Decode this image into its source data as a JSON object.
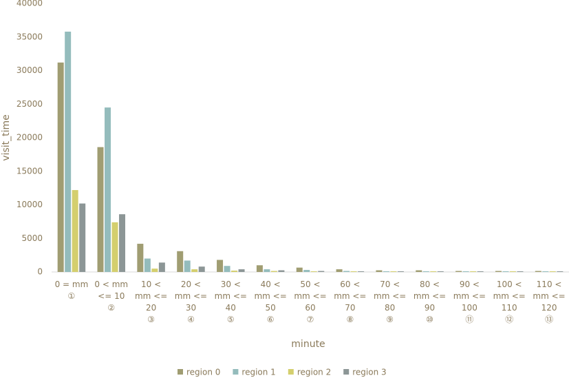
{
  "chart_data": {
    "type": "bar",
    "x_label": "minute",
    "y_label": "visit_time",
    "categories": [
      "0 = mm ①",
      "0 < mm <= 10 ②",
      "10 < mm <= 20 ③",
      "20 < mm <= 30 ④",
      "30 < mm <= 40 ⑤",
      "40 < mm <= 50 ⑥",
      "50 < mm <= 60 ⑦",
      "60 < mm <= 70 ⑧",
      "70 < mm <= 80 ⑨",
      "80 < mm <= 90 ⑩",
      "90 < mm <= 100 ⑪",
      "100 < mm <= 110 ⑫",
      "110 < mm <= 120 ⑬"
    ],
    "series": [
      {
        "name": "region 0",
        "color": "#a09d72",
        "values": [
          31200,
          18600,
          4200,
          3100,
          1800,
          1000,
          650,
          400,
          250,
          250,
          150,
          150,
          150
        ]
      },
      {
        "name": "region 1",
        "color": "#94bcbc",
        "values": [
          35800,
          24500,
          2000,
          1700,
          900,
          400,
          300,
          150,
          100,
          100,
          100,
          100,
          100
        ]
      },
      {
        "name": "region 2",
        "color": "#d4cf6e",
        "values": [
          12200,
          7400,
          500,
          400,
          200,
          150,
          100,
          100,
          100,
          100,
          100,
          100,
          100
        ]
      },
      {
        "name": "region 3",
        "color": "#8c9696",
        "values": [
          10200,
          8600,
          1400,
          800,
          400,
          250,
          150,
          100,
          100,
          100,
          100,
          100,
          100
        ]
      }
    ],
    "ylim": [
      0,
      40000
    ],
    "yticks": [
      0,
      5000,
      10000,
      15000,
      20000,
      25000,
      30000,
      35000,
      40000
    ],
    "grid": false,
    "legend": "bottom"
  }
}
